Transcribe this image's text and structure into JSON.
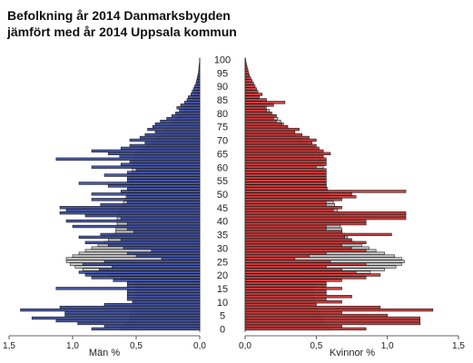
{
  "chart_data": {
    "type": "bar",
    "title": [
      "Befolkning år 2014 Danmarksbygden",
      "jämfört med år 2014 Uppsala kommun"
    ],
    "age_labels": [
      "0",
      "5",
      "10",
      "15",
      "20",
      "25",
      "30",
      "35",
      "40",
      "45",
      "50",
      "55",
      "60",
      "65",
      "70",
      "75",
      "80",
      "85",
      "90",
      "95",
      "100"
    ],
    "ages": [
      0,
      1,
      2,
      3,
      4,
      5,
      6,
      7,
      8,
      9,
      10,
      11,
      12,
      13,
      14,
      15,
      16,
      17,
      18,
      19,
      20,
      21,
      22,
      23,
      24,
      25,
      26,
      27,
      28,
      29,
      30,
      31,
      32,
      33,
      34,
      35,
      36,
      37,
      38,
      39,
      40,
      41,
      42,
      43,
      44,
      45,
      46,
      47,
      48,
      49,
      50,
      51,
      52,
      53,
      54,
      55,
      56,
      57,
      58,
      59,
      60,
      61,
      62,
      63,
      64,
      65,
      66,
      67,
      68,
      69,
      70,
      71,
      72,
      73,
      74,
      75,
      76,
      77,
      78,
      79,
      80,
      81,
      82,
      83,
      84,
      85,
      86,
      87,
      88,
      89,
      90,
      91,
      92,
      93,
      94,
      95,
      96,
      97,
      98,
      99,
      100
    ],
    "left_axis": {
      "label": "Män %",
      "ticks": [
        "1,5",
        "1,0",
        "0,5",
        "0,0"
      ],
      "tick_values": [
        1.5,
        1.0,
        0.5,
        0.0
      ],
      "range": [
        0,
        1.5
      ]
    },
    "right_axis": {
      "label": "Kvinnor %",
      "ticks": [
        "0,0",
        "0,5",
        "1,0",
        "1,5"
      ],
      "tick_values": [
        0.0,
        0.5,
        1.0,
        1.5
      ],
      "range": [
        0,
        1.5
      ]
    },
    "colors": {
      "men": "#3a4a9c",
      "women": "#c83232",
      "reference": "#c8c8c8",
      "outline": "#1a1a1a"
    },
    "series": [
      {
        "name": "Män %",
        "side": "left",
        "kind": "area",
        "values": [
          0.85,
          0.75,
          0.96,
          1.13,
          1.32,
          1.06,
          1.06,
          1.41,
          1.1,
          0.75,
          0.53,
          0.57,
          0.57,
          0.57,
          0.57,
          1.13,
          0.57,
          0.57,
          0.68,
          0.85,
          0.9,
          0.95,
          0.79,
          0.69,
          0.92,
          0.75,
          0.3,
          0.5,
          0.57,
          0.38,
          0.6,
          0.72,
          0.9,
          0.62,
          0.95,
          0.78,
          0.52,
          0.57,
          1.0,
          0.57,
          1.05,
          0.62,
          0.9,
          1.1,
          1.05,
          1.1,
          0.78,
          0.57,
          0.85,
          0.57,
          0.85,
          0.62,
          0.57,
          0.72,
          0.95,
          0.57,
          0.57,
          0.75,
          0.57,
          0.5,
          0.85,
          0.62,
          0.55,
          1.13,
          0.63,
          0.72,
          0.85,
          0.62,
          0.55,
          0.43,
          0.55,
          0.47,
          0.43,
          0.35,
          0.41,
          0.37,
          0.35,
          0.31,
          0.26,
          0.22,
          0.19,
          0.16,
          0.18,
          0.15,
          0.12,
          0.1,
          0.09,
          0.07,
          0.06,
          0.05,
          0.04,
          0.03,
          0.025,
          0.02,
          0.015,
          0.01,
          0.008,
          0.006,
          0.004,
          0.002,
          0.001
        ]
      },
      {
        "name": "Män % Uppsala kommun",
        "side": "left",
        "kind": "reference",
        "values": [
          0.62,
          0.6,
          0.58,
          0.56,
          0.55,
          0.55,
          0.54,
          0.53,
          0.52,
          0.52,
          0.51,
          0.51,
          0.5,
          0.5,
          0.49,
          0.49,
          0.5,
          0.52,
          0.55,
          0.62,
          0.7,
          0.82,
          0.92,
          0.98,
          1.02,
          1.05,
          1.05,
          1.0,
          0.95,
          0.9,
          0.85,
          0.8,
          0.75,
          0.72,
          0.7,
          0.68,
          0.66,
          0.66,
          0.65,
          0.65,
          0.65,
          0.65,
          0.64,
          0.64,
          0.63,
          0.62,
          0.61,
          0.6,
          0.59,
          0.58,
          0.57,
          0.56,
          0.56,
          0.55,
          0.55,
          0.54,
          0.54,
          0.54,
          0.53,
          0.53,
          0.53,
          0.52,
          0.52,
          0.51,
          0.5,
          0.5,
          0.48,
          0.45,
          0.42,
          0.38,
          0.35,
          0.33,
          0.3,
          0.28,
          0.26,
          0.24,
          0.22,
          0.2,
          0.18,
          0.16,
          0.14,
          0.12,
          0.11,
          0.09,
          0.08,
          0.06,
          0.05,
          0.04,
          0.03,
          0.02,
          0.02,
          0.015,
          0.01,
          0.008,
          0.005,
          0.004,
          0.003,
          0.002,
          0.001,
          0.001,
          0.0005
        ]
      },
      {
        "name": "Kvinnor %",
        "side": "right",
        "kind": "area",
        "values": [
          0.85,
          0.68,
          1.23,
          1.23,
          1.23,
          1.0,
          0.68,
          1.32,
          0.95,
          0.5,
          0.68,
          0.57,
          0.75,
          0.57,
          0.57,
          0.68,
          0.57,
          0.57,
          0.68,
          0.85,
          0.95,
          0.78,
          0.68,
          0.57,
          0.85,
          0.6,
          0.35,
          0.45,
          0.57,
          0.85,
          0.75,
          0.68,
          0.85,
          0.75,
          0.7,
          1.03,
          0.68,
          0.57,
          0.57,
          0.85,
          0.85,
          1.13,
          1.13,
          1.13,
          0.62,
          0.68,
          0.57,
          0.57,
          0.68,
          0.78,
          0.75,
          1.13,
          0.57,
          0.57,
          0.57,
          0.57,
          0.57,
          0.57,
          0.57,
          0.57,
          0.5,
          0.57,
          0.57,
          0.57,
          0.55,
          0.6,
          0.55,
          0.52,
          0.5,
          0.47,
          0.5,
          0.45,
          0.4,
          0.35,
          0.38,
          0.3,
          0.26,
          0.22,
          0.2,
          0.22,
          0.18,
          0.15,
          0.14,
          0.2,
          0.28,
          0.15,
          0.1,
          0.12,
          0.09,
          0.08,
          0.07,
          0.06,
          0.05,
          0.04,
          0.03,
          0.025,
          0.02,
          0.015,
          0.01,
          0.006,
          0.003
        ]
      },
      {
        "name": "Kvinnor % Uppsala kommun",
        "side": "right",
        "kind": "reference",
        "values": [
          0.6,
          0.58,
          0.56,
          0.54,
          0.53,
          0.52,
          0.52,
          0.51,
          0.5,
          0.5,
          0.49,
          0.49,
          0.48,
          0.48,
          0.48,
          0.47,
          0.49,
          0.51,
          0.55,
          0.65,
          0.75,
          0.88,
          0.98,
          1.06,
          1.1,
          1.12,
          1.1,
          1.05,
          0.98,
          0.92,
          0.87,
          0.82,
          0.77,
          0.74,
          0.72,
          0.7,
          0.68,
          0.68,
          0.67,
          0.67,
          0.67,
          0.67,
          0.66,
          0.66,
          0.65,
          0.64,
          0.63,
          0.62,
          0.61,
          0.6,
          0.59,
          0.58,
          0.58,
          0.57,
          0.57,
          0.56,
          0.56,
          0.56,
          0.55,
          0.55,
          0.55,
          0.54,
          0.54,
          0.53,
          0.52,
          0.52,
          0.5,
          0.48,
          0.46,
          0.43,
          0.4,
          0.38,
          0.35,
          0.33,
          0.31,
          0.29,
          0.27,
          0.25,
          0.23,
          0.21,
          0.19,
          0.17,
          0.15,
          0.13,
          0.11,
          0.09,
          0.08,
          0.06,
          0.05,
          0.04,
          0.03,
          0.025,
          0.02,
          0.015,
          0.01,
          0.008,
          0.005,
          0.003,
          0.002,
          0.001,
          0.0005
        ]
      }
    ]
  }
}
